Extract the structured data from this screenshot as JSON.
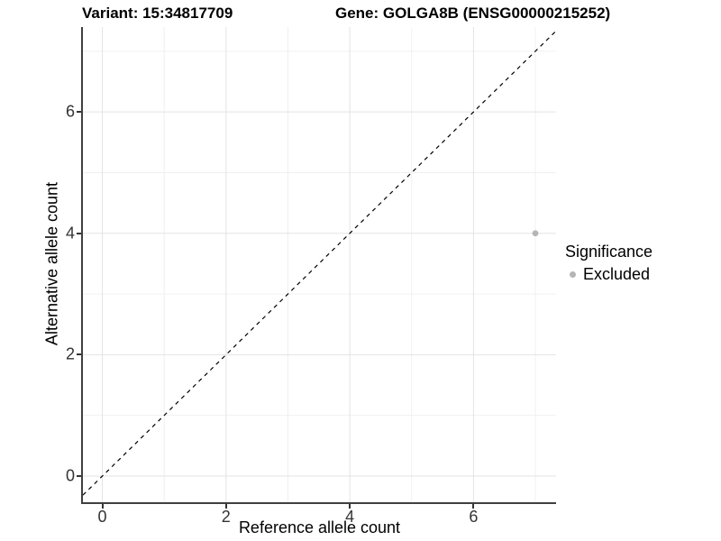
{
  "figure": {
    "background": "#ffffff"
  },
  "chart_data": {
    "type": "scatter",
    "title_left": "Variant: 15:34817709",
    "title_right": "Gene: GOLGA8B (ENSG00000215252)",
    "xlabel": "Reference allele count",
    "ylabel": "Alternative allele count",
    "xlim": [
      -0.314,
      7.335
    ],
    "ylim": [
      -0.431,
      7.399
    ],
    "x_ticks": {
      "major": [
        0,
        2,
        4,
        6
      ],
      "minor": [
        1,
        3,
        5,
        7
      ]
    },
    "y_ticks": {
      "major": [
        0,
        2,
        4,
        6
      ],
      "minor": [
        1,
        3,
        5,
        7
      ]
    },
    "grid": "major+minor",
    "points": [
      {
        "x": 7,
        "y": 4,
        "significance": "Excluded"
      }
    ],
    "identity_line": {
      "slope": 1,
      "intercept": 0,
      "style": "dashed"
    },
    "legend": {
      "title": "Significance",
      "position": "right-middle",
      "items": [
        {
          "label": "Excluded",
          "color": "#b5b5b5"
        }
      ]
    },
    "colors": {
      "background": "#ffffff",
      "point": "#b5b5b5",
      "grid_major": "#e3e3e3",
      "grid_minor": "#f0f0f0",
      "axis_line": "#404040",
      "tick_mark": "#333333",
      "tick_label": "#333333",
      "text": "#000000",
      "identity_line": "#000000"
    }
  }
}
